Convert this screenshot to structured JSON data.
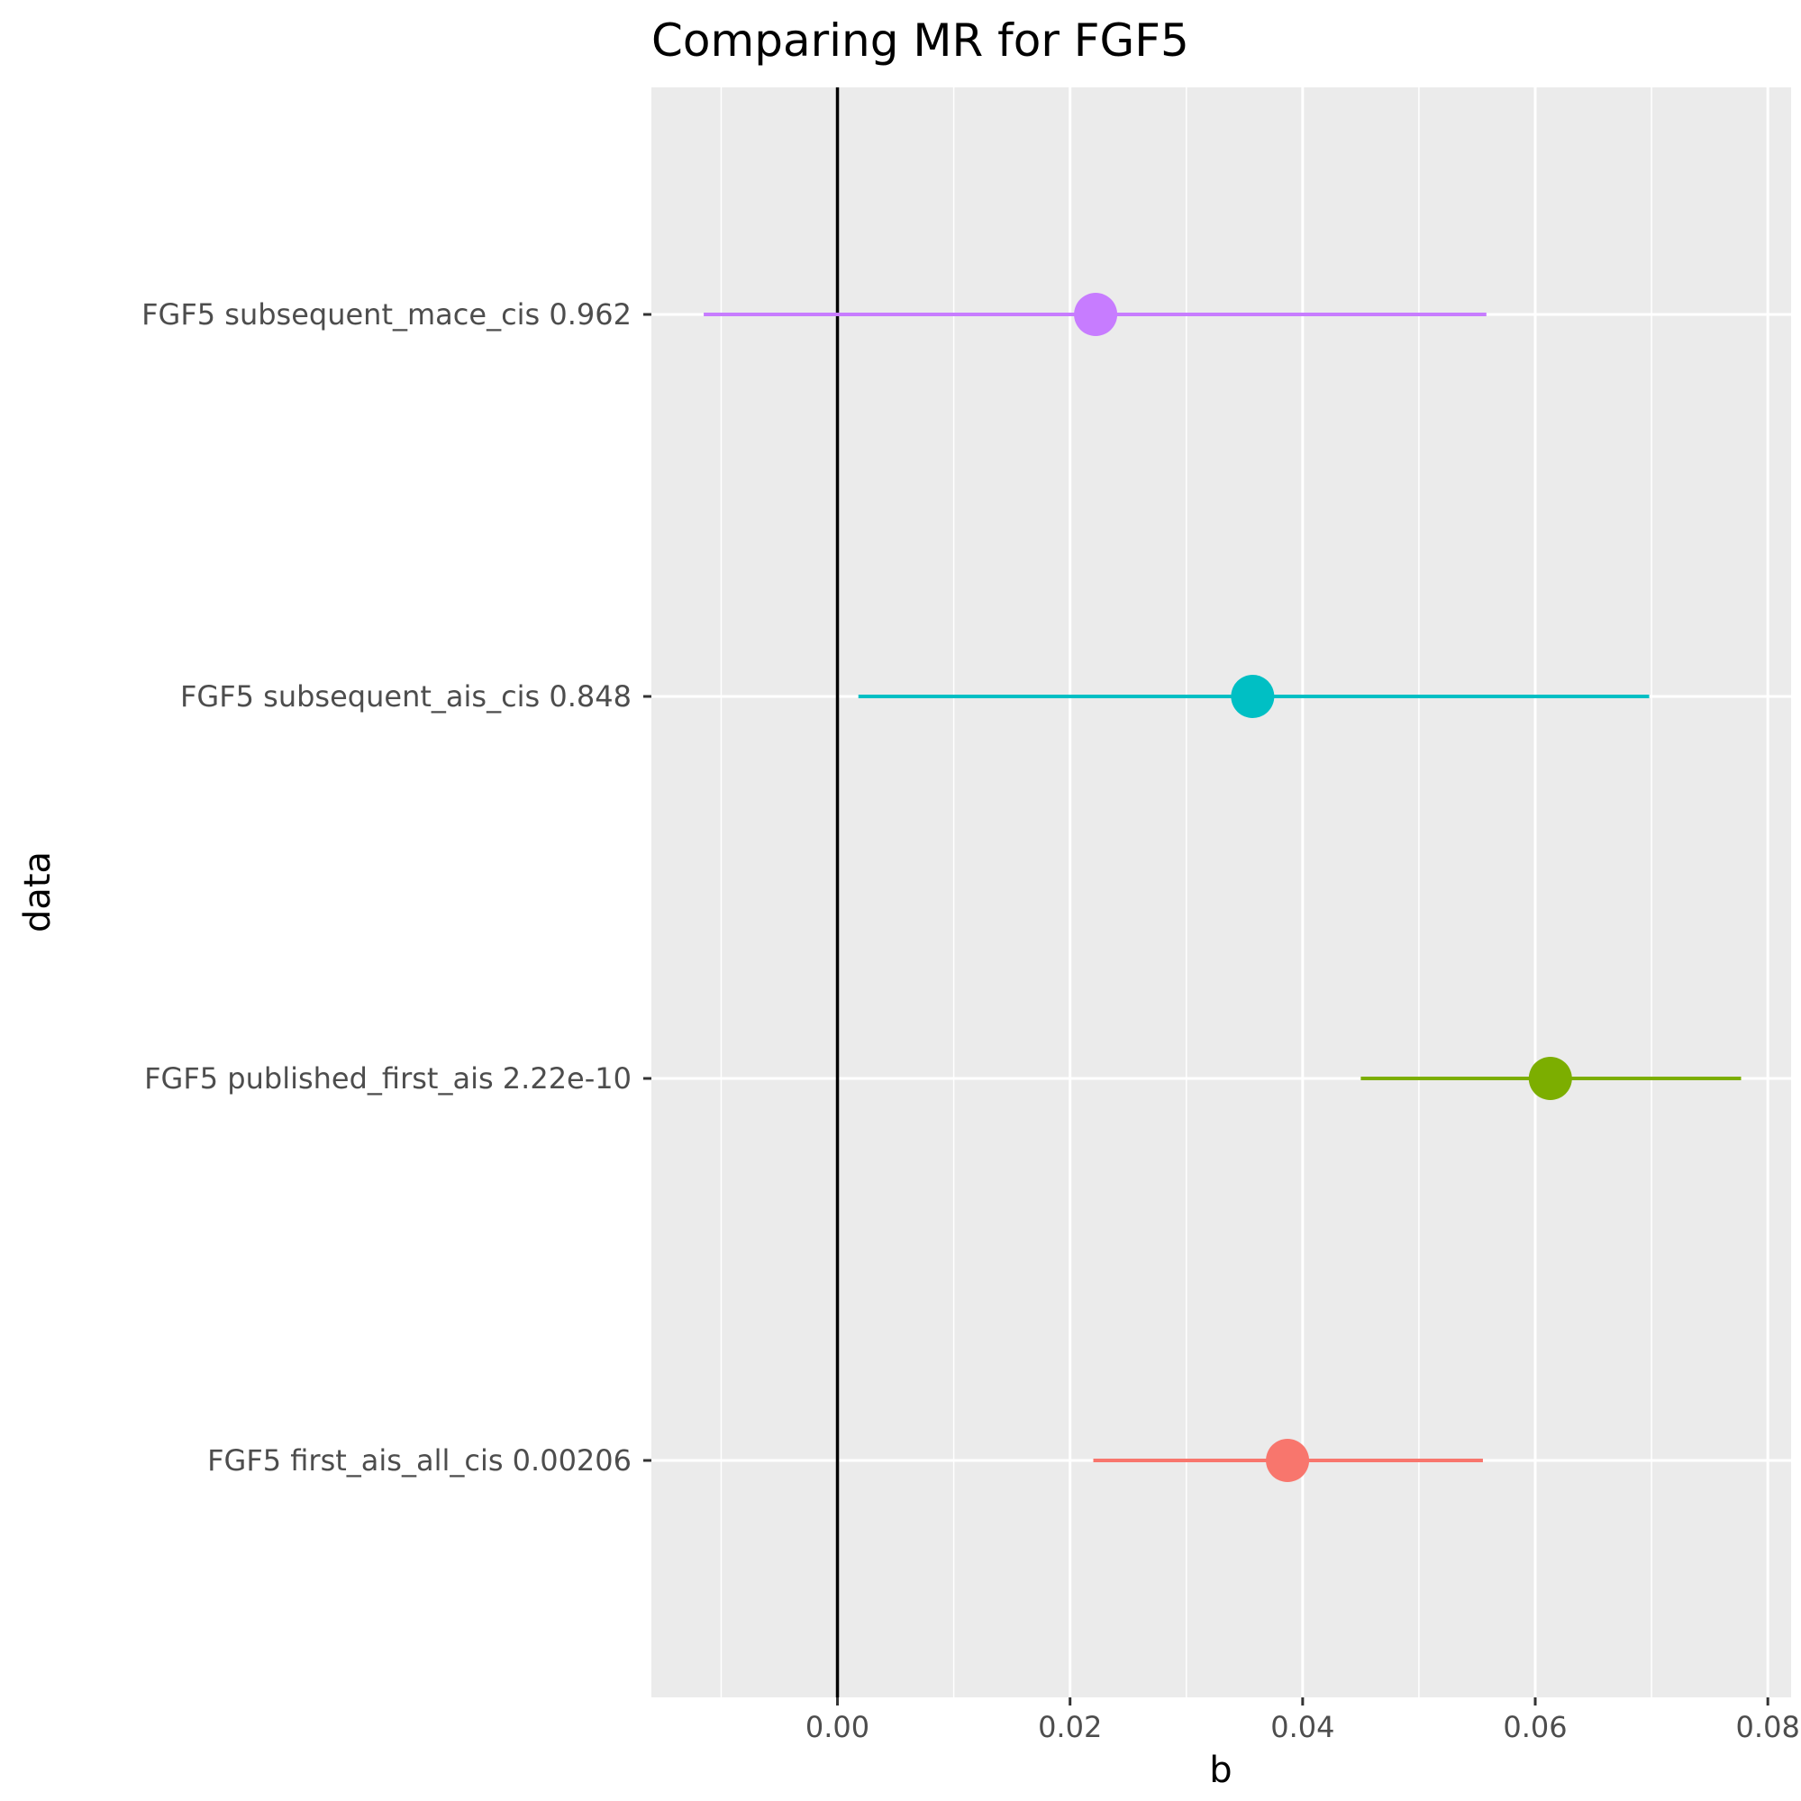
{
  "chart_data": {
    "type": "forest",
    "title": "Comparing MR for FGF5",
    "xlabel": "b",
    "ylabel": "data",
    "xlim": [
      -0.016,
      0.082
    ],
    "xticks": [
      0.0,
      0.02,
      0.04,
      0.06,
      0.08
    ],
    "xtick_labels": [
      "0.00",
      "0.02",
      "0.04",
      "0.06",
      "0.08"
    ],
    "reference_line_x": 0,
    "grid": true,
    "legend": "none",
    "points": [
      {
        "label": "FGF5 subsequent_mace_cis 0.962",
        "b": 0.0222,
        "lo": -0.0115,
        "hi": 0.0558,
        "color": "#C77CFF"
      },
      {
        "label": "FGF5 subsequent_ais_cis 0.848",
        "b": 0.0357,
        "lo": 0.0018,
        "hi": 0.0698,
        "color": "#00BFC4"
      },
      {
        "label": "FGF5 published_first_ais 2.22e-10",
        "b": 0.0613,
        "lo": 0.045,
        "hi": 0.0777,
        "color": "#7CAE00"
      },
      {
        "label": "FGF5 first_ais_all_cis 0.00206",
        "b": 0.0387,
        "lo": 0.022,
        "hi": 0.0555,
        "color": "#F8766D"
      }
    ]
  }
}
